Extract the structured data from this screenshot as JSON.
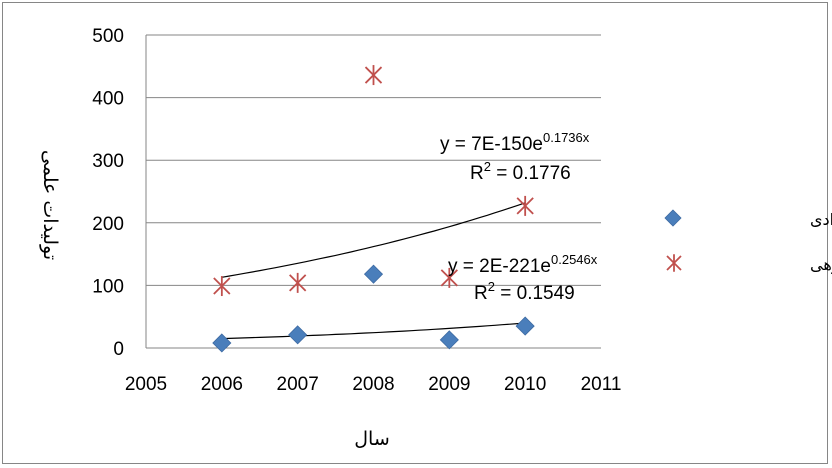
{
  "chart_data": {
    "type": "scatter",
    "xlabel": "سال",
    "ylabel": "تولیدات علمی",
    "xlim": [
      2005,
      2011
    ],
    "ylim": [
      0,
      500
    ],
    "xticks": [
      2005,
      2006,
      2007,
      2008,
      2009,
      2010,
      2011
    ],
    "yticks": [
      0,
      100,
      200,
      300,
      400,
      500
    ],
    "grid": "horizontal",
    "legend_position": "right",
    "series": [
      {
        "name": "تولیدات انفرادی",
        "marker": "diamond",
        "color": "#4A7EBB",
        "x": [
          2006,
          2007,
          2008,
          2009,
          2010
        ],
        "y": [
          8,
          21,
          118,
          13,
          35
        ],
        "trendline": {
          "type": "exponential",
          "color": "#000000",
          "x_range": [
            2006,
            2010
          ],
          "y_range": [
            15,
            40
          ],
          "equation": {
            "lead": "y = 2E-221e",
            "exponent": "0.2546x"
          },
          "r2": {
            "lead": "R",
            "sup": "2",
            "rest": " = 0.1549"
          }
        }
      },
      {
        "name": "تولیدات گروهی",
        "marker": "asterisk",
        "color": "#C0504D",
        "x": [
          2006,
          2007,
          2008,
          2009,
          2010
        ],
        "y": [
          99,
          104,
          436,
          112,
          227
        ],
        "trendline": {
          "type": "exponential",
          "color": "#000000",
          "x_range": [
            2006,
            2010
          ],
          "y_range": [
            113,
            232
          ],
          "equation": {
            "lead": "y = 7E-150e",
            "exponent": "0.1736x"
          },
          "r2": {
            "lead": "R",
            "sup": "2",
            "rest": " = 0.1776"
          }
        }
      }
    ]
  }
}
